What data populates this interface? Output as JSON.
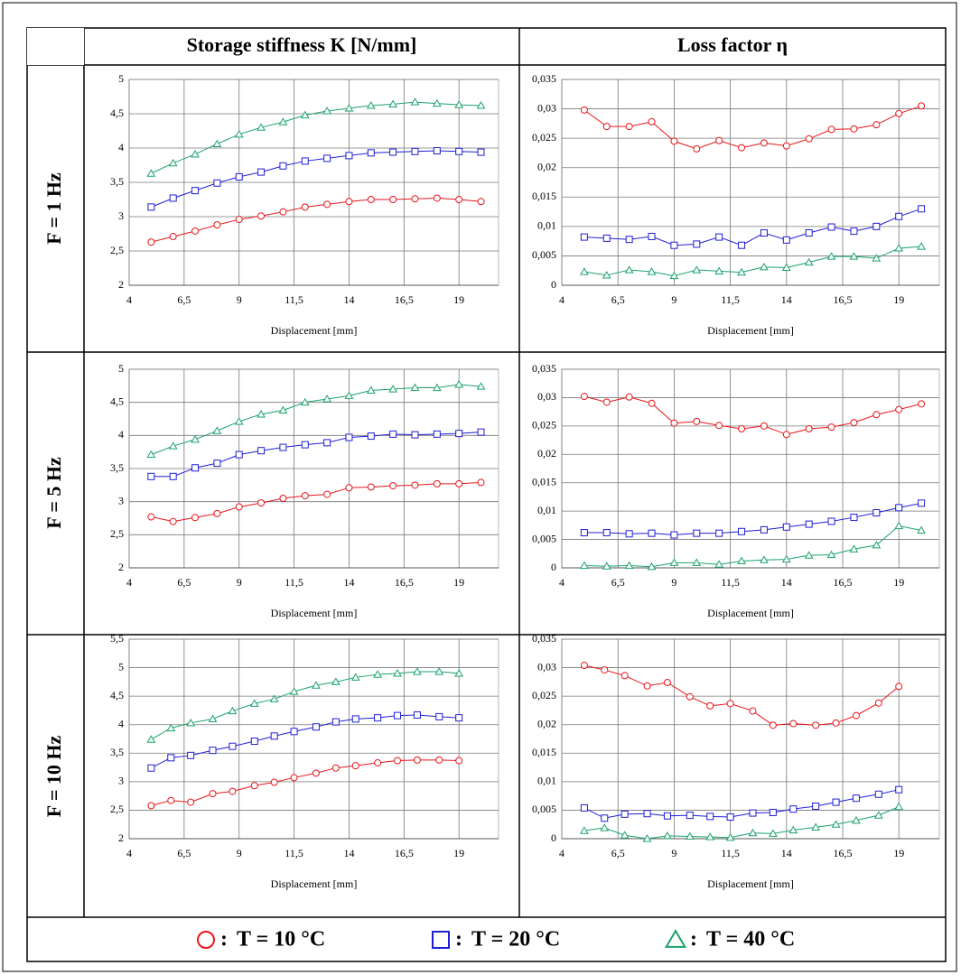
{
  "table": {
    "columns": [
      "Storage stiffness K [N/mm]",
      "Loss factor η"
    ],
    "rows": [
      "F = 1 Hz",
      "F = 5 Hz",
      "F = 10 Hz"
    ]
  },
  "legend": [
    {
      "name": "T = 10 °C",
      "color": "#e8161b",
      "marker": "circle"
    },
    {
      "name": "T = 20 °C",
      "color": "#1f1fd6",
      "marker": "square"
    },
    {
      "name": "T = 40 °C",
      "color": "#1aa36a",
      "marker": "triangle"
    }
  ],
  "chart_data": [
    {
      "type": "line",
      "xlabel": "Displacement [mm]",
      "grid": true,
      "x": [
        5,
        6,
        7,
        8,
        9,
        10,
        11,
        12,
        13,
        14,
        15,
        16,
        17,
        18,
        19,
        20
      ],
      "xlim": [
        4,
        20.8
      ],
      "xticks": [
        4,
        {
          "value": 6.5,
          "label": "6,5"
        },
        9,
        {
          "value": 11.5,
          "label": "11,5"
        },
        14,
        {
          "value": 16.5,
          "label": "16,5"
        },
        19
      ],
      "ylim": [
        2,
        5
      ],
      "yticks": [
        2,
        {
          "value": 2.5,
          "label": "2,5"
        },
        3,
        {
          "value": 3.5,
          "label": "3,5"
        },
        4,
        {
          "value": 4.5,
          "label": "4,5"
        },
        5
      ],
      "series": [
        {
          "values": [
            2.63,
            2.71,
            2.79,
            2.88,
            2.96,
            3.01,
            3.07,
            3.14,
            3.18,
            3.22,
            3.25,
            3.25,
            3.26,
            3.27,
            3.25,
            3.22
          ]
        },
        {
          "values": [
            3.14,
            3.27,
            3.38,
            3.49,
            3.58,
            3.65,
            3.74,
            3.81,
            3.85,
            3.89,
            3.93,
            3.94,
            3.95,
            3.96,
            3.95,
            3.94
          ]
        },
        {
          "values": [
            3.63,
            3.78,
            3.91,
            4.06,
            4.2,
            4.3,
            4.38,
            4.48,
            4.54,
            4.58,
            4.62,
            4.64,
            4.67,
            4.65,
            4.63,
            4.62
          ]
        }
      ]
    },
    {
      "type": "line",
      "xlabel": "Displacement [mm]",
      "grid": true,
      "x": [
        5,
        6,
        7,
        8,
        9,
        10,
        11,
        12,
        13,
        14,
        15,
        16,
        17,
        18,
        19,
        20
      ],
      "xlim": [
        4,
        20.8
      ],
      "xticks": [
        4,
        {
          "value": 6.5,
          "label": "6,5"
        },
        9,
        {
          "value": 11.5,
          "label": "11,5"
        },
        14,
        {
          "value": 16.5,
          "label": "16,5"
        },
        19
      ],
      "ylim": [
        0,
        0.035
      ],
      "yticks": [
        0,
        {
          "value": 0.005,
          "label": "0,005"
        },
        {
          "value": 0.01,
          "label": "0,01"
        },
        {
          "value": 0.015,
          "label": "0,015"
        },
        {
          "value": 0.02,
          "label": "0,02"
        },
        {
          "value": 0.025,
          "label": "0,025"
        },
        {
          "value": 0.03,
          "label": "0,03"
        },
        {
          "value": 0.035,
          "label": "0,035"
        }
      ],
      "series": [
        {
          "values": [
            0.0298,
            0.027,
            0.027,
            0.0278,
            0.0245,
            0.0232,
            0.0246,
            0.0234,
            0.0242,
            0.0237,
            0.0249,
            0.0265,
            0.0266,
            0.0273,
            0.0292,
            0.0305
          ]
        },
        {
          "values": [
            0.0082,
            0.008,
            0.0078,
            0.0083,
            0.0068,
            0.007,
            0.0082,
            0.0068,
            0.0089,
            0.0077,
            0.0089,
            0.0099,
            0.0092,
            0.01,
            0.0117,
            0.013
          ]
        },
        {
          "values": [
            0.0023,
            0.0017,
            0.0026,
            0.0023,
            0.0016,
            0.0026,
            0.0024,
            0.0022,
            0.0031,
            0.003,
            0.0039,
            0.0049,
            0.0049,
            0.0046,
            0.0063,
            0.0066
          ]
        }
      ]
    },
    {
      "type": "line",
      "xlabel": "Displacement [mm]",
      "grid": true,
      "x": [
        5,
        6,
        7,
        8,
        9,
        10,
        11,
        12,
        13,
        14,
        15,
        16,
        17,
        18,
        19,
        20
      ],
      "xlim": [
        4,
        20.8
      ],
      "xticks": [
        4,
        {
          "value": 6.5,
          "label": "6,5"
        },
        9,
        {
          "value": 11.5,
          "label": "11,5"
        },
        14,
        {
          "value": 16.5,
          "label": "16,5"
        },
        19
      ],
      "ylim": [
        2,
        5
      ],
      "yticks": [
        2,
        {
          "value": 2.5,
          "label": "2,5"
        },
        3,
        {
          "value": 3.5,
          "label": "3,5"
        },
        4,
        {
          "value": 4.5,
          "label": "4,5"
        },
        5
      ],
      "series": [
        {
          "values": [
            2.77,
            2.7,
            2.76,
            2.82,
            2.92,
            2.98,
            3.05,
            3.09,
            3.11,
            3.21,
            3.22,
            3.24,
            3.25,
            3.27,
            3.27,
            3.29
          ]
        },
        {
          "values": [
            3.38,
            3.38,
            3.51,
            3.58,
            3.71,
            3.77,
            3.82,
            3.86,
            3.89,
            3.97,
            3.99,
            4.02,
            4.01,
            4.02,
            4.03,
            4.05
          ]
        },
        {
          "values": [
            3.71,
            3.84,
            3.94,
            4.07,
            4.21,
            4.32,
            4.38,
            4.5,
            4.55,
            4.6,
            4.68,
            4.7,
            4.72,
            4.72,
            4.77,
            4.74
          ]
        }
      ]
    },
    {
      "type": "line",
      "xlabel": "Displacement [mm]",
      "grid": true,
      "x": [
        5,
        6,
        7,
        8,
        9,
        10,
        11,
        12,
        13,
        14,
        15,
        16,
        17,
        18,
        19,
        20
      ],
      "xlim": [
        4,
        20.8
      ],
      "xticks": [
        4,
        {
          "value": 6.5,
          "label": "6,5"
        },
        9,
        {
          "value": 11.5,
          "label": "11,5"
        },
        14,
        {
          "value": 16.5,
          "label": "16,5"
        },
        19
      ],
      "ylim": [
        0,
        0.035
      ],
      "yticks": [
        0,
        {
          "value": 0.005,
          "label": "0,005"
        },
        {
          "value": 0.01,
          "label": "0,01"
        },
        {
          "value": 0.015,
          "label": "0,015"
        },
        {
          "value": 0.02,
          "label": "0,02"
        },
        {
          "value": 0.025,
          "label": "0,025"
        },
        {
          "value": 0.03,
          "label": "0,03"
        },
        {
          "value": 0.035,
          "label": "0,035"
        }
      ],
      "series": [
        {
          "values": [
            0.0302,
            0.0292,
            0.0301,
            0.029,
            0.0255,
            0.0258,
            0.0251,
            0.0245,
            0.025,
            0.0235,
            0.0245,
            0.0248,
            0.0256,
            0.027,
            0.0279,
            0.0289
          ]
        },
        {
          "values": [
            0.0062,
            0.0062,
            0.006,
            0.0061,
            0.0058,
            0.0061,
            0.0061,
            0.0064,
            0.0067,
            0.0072,
            0.0077,
            0.0082,
            0.0089,
            0.0097,
            0.0106,
            0.0114
          ]
        },
        {
          "values": [
            0.0004,
            0.0003,
            0.0004,
            0.0002,
            0.0009,
            0.0009,
            0.0006,
            0.0012,
            0.0014,
            0.0015,
            0.0022,
            0.0023,
            0.0033,
            0.004,
            0.0074,
            0.0066
          ]
        }
      ]
    },
    {
      "type": "line",
      "xlabel": "Displacement [mm]",
      "grid": true,
      "x": [
        5,
        5.9,
        6.8,
        7.8,
        8.7,
        9.7,
        10.6,
        11.5,
        12.5,
        13.4,
        14.3,
        15.3,
        16.2,
        17.1,
        18.1,
        19
      ],
      "xlim": [
        4,
        20.8
      ],
      "xticks": [
        4,
        {
          "value": 6.5,
          "label": "6,5"
        },
        9,
        {
          "value": 11.5,
          "label": "11,5"
        },
        14,
        {
          "value": 16.5,
          "label": "16,5"
        },
        19
      ],
      "ylim": [
        2,
        5.5
      ],
      "yticks": [
        2,
        {
          "value": 2.5,
          "label": "2,5"
        },
        3,
        {
          "value": 3.5,
          "label": "3,5"
        },
        4,
        {
          "value": 4.5,
          "label": "4,5"
        },
        5,
        {
          "value": 5.5,
          "label": "5,5"
        }
      ],
      "series": [
        {
          "values": [
            2.58,
            2.67,
            2.64,
            2.79,
            2.83,
            2.93,
            2.99,
            3.07,
            3.15,
            3.24,
            3.28,
            3.33,
            3.37,
            3.38,
            3.38,
            3.37
          ]
        },
        {
          "values": [
            3.24,
            3.42,
            3.46,
            3.55,
            3.62,
            3.71,
            3.8,
            3.88,
            3.96,
            4.05,
            4.1,
            4.12,
            4.16,
            4.17,
            4.14,
            4.12
          ]
        },
        {
          "values": [
            3.74,
            3.94,
            4.03,
            4.1,
            4.24,
            4.37,
            4.45,
            4.58,
            4.69,
            4.75,
            4.83,
            4.88,
            4.9,
            4.93,
            4.93,
            4.9
          ]
        }
      ]
    },
    {
      "type": "line",
      "xlabel": "Displacement [mm]",
      "grid": true,
      "x": [
        5,
        5.9,
        6.8,
        7.8,
        8.7,
        9.7,
        10.6,
        11.5,
        12.5,
        13.4,
        14.3,
        15.3,
        16.2,
        17.1,
        18.1,
        19
      ],
      "xlim": [
        4,
        20.8
      ],
      "xticks": [
        4,
        {
          "value": 6.5,
          "label": "6,5"
        },
        9,
        {
          "value": 11.5,
          "label": "11,5"
        },
        14,
        {
          "value": 16.5,
          "label": "16,5"
        },
        19
      ],
      "ylim": [
        0,
        0.035
      ],
      "yticks": [
        0,
        {
          "value": 0.005,
          "label": "0,005"
        },
        {
          "value": 0.01,
          "label": "0,01"
        },
        {
          "value": 0.015,
          "label": "0,015"
        },
        {
          "value": 0.02,
          "label": "0,02"
        },
        {
          "value": 0.025,
          "label": "0,025"
        },
        {
          "value": 0.03,
          "label": "0,03"
        },
        {
          "value": 0.035,
          "label": "0,035"
        }
      ],
      "series": [
        {
          "values": [
            0.0304,
            0.0296,
            0.0286,
            0.0268,
            0.0274,
            0.0249,
            0.0233,
            0.0237,
            0.0224,
            0.0199,
            0.0202,
            0.0199,
            0.0203,
            0.0216,
            0.0238,
            0.0267
          ]
        },
        {
          "values": [
            0.0054,
            0.0036,
            0.0043,
            0.0044,
            0.004,
            0.0041,
            0.0039,
            0.0038,
            0.0045,
            0.0046,
            0.0052,
            0.0057,
            0.0064,
            0.0071,
            0.0078,
            0.0086
          ]
        },
        {
          "values": [
            0.0014,
            0.0019,
            0.0006,
            0,
            0.0005,
            0.0004,
            0.0003,
            0.0002,
            0.001,
            0.0009,
            0.0015,
            0.002,
            0.0025,
            0.0032,
            0.0041,
            0.0056
          ]
        }
      ]
    }
  ]
}
